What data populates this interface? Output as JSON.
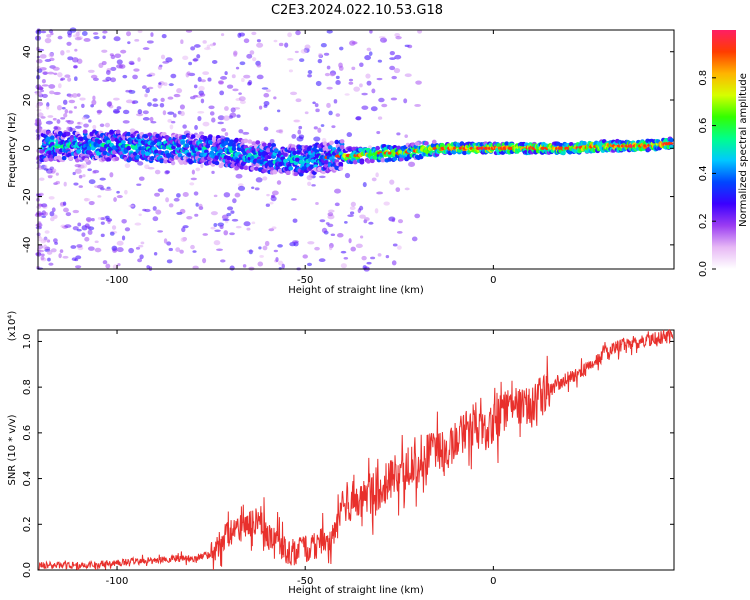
{
  "figure": {
    "title": "C2E3.2024.022.10.53.G18"
  },
  "chart_data": [
    {
      "type": "heatmap",
      "xlabel": "Height of straight line (km)",
      "ylabel": "Frequency (Hz)",
      "xlim": [
        -121,
        48
      ],
      "ylim": [
        -50,
        49
      ],
      "xticks": [
        -100,
        -50,
        0
      ],
      "yticks": [
        -40,
        -20,
        0,
        20,
        40
      ],
      "ridge": {
        "x": [
          -120,
          -110,
          -100,
          -90,
          -80,
          -70,
          -60,
          -50,
          -45,
          -40,
          -35,
          -30,
          -25,
          -20,
          -15,
          -10,
          0,
          10,
          20,
          30,
          40,
          47
        ],
        "y": [
          1,
          1,
          1,
          0,
          0,
          -2,
          -4,
          -5,
          -4,
          -3,
          -3,
          -2,
          -2,
          -1,
          0,
          0,
          0,
          0,
          0,
          1,
          1,
          2
        ]
      },
      "colorbar": {
        "label": "Normalized spectral amplitude",
        "range": [
          0,
          1
        ],
        "ticks": [
          "0.0",
          "0.2",
          "0.4",
          "0.6",
          "0.8"
        ],
        "colormap": [
          "#ffffff",
          "#e7b8f5",
          "#9b3df2",
          "#3b00ff",
          "#0046ff",
          "#00c8ff",
          "#00ff8c",
          "#33ff00",
          "#d6ff00",
          "#ffb400",
          "#ff3c00",
          "#ff1e64"
        ]
      }
    },
    {
      "type": "line",
      "xlabel": "Height of straight line (km)",
      "ylabel": "SNR (10 * v/v)",
      "multiplier": "(x10⁴)",
      "xlim": [
        -121,
        48
      ],
      "ylim": [
        0,
        1.05
      ],
      "xticks": [
        -100,
        -50,
        0
      ],
      "yticks": [
        "0.0",
        "0.2",
        "0.4",
        "0.6",
        "0.8",
        "1.0"
      ],
      "color": "#e8302c",
      "series": [
        {
          "x": [
            -120,
            -110,
            -100,
            -95,
            -90,
            -85,
            -80,
            -75,
            -72,
            -68,
            -65,
            -62,
            -60,
            -57,
            -55,
            -52,
            -48,
            -45,
            -42,
            -40,
            -38,
            -35,
            -32,
            -30,
            -28,
            -25,
            -22,
            -20,
            -18,
            -15,
            -12,
            -10,
            -8,
            -5,
            -3,
            0,
            2,
            5,
            8,
            10,
            13,
            16,
            20,
            25,
            30,
            35,
            40,
            45,
            47
          ],
          "y": [
            0.02,
            0.02,
            0.03,
            0.04,
            0.04,
            0.05,
            0.05,
            0.07,
            0.14,
            0.18,
            0.2,
            0.22,
            0.16,
            0.12,
            0.08,
            0.08,
            0.1,
            0.13,
            0.15,
            0.3,
            0.3,
            0.32,
            0.34,
            0.33,
            0.4,
            0.42,
            0.46,
            0.44,
            0.5,
            0.52,
            0.52,
            0.58,
            0.6,
            0.64,
            0.6,
            0.64,
            0.68,
            0.74,
            0.7,
            0.72,
            0.76,
            0.8,
            0.84,
            0.88,
            0.95,
            0.99,
            1.0,
            1.02,
            1.02
          ]
        }
      ]
    }
  ]
}
